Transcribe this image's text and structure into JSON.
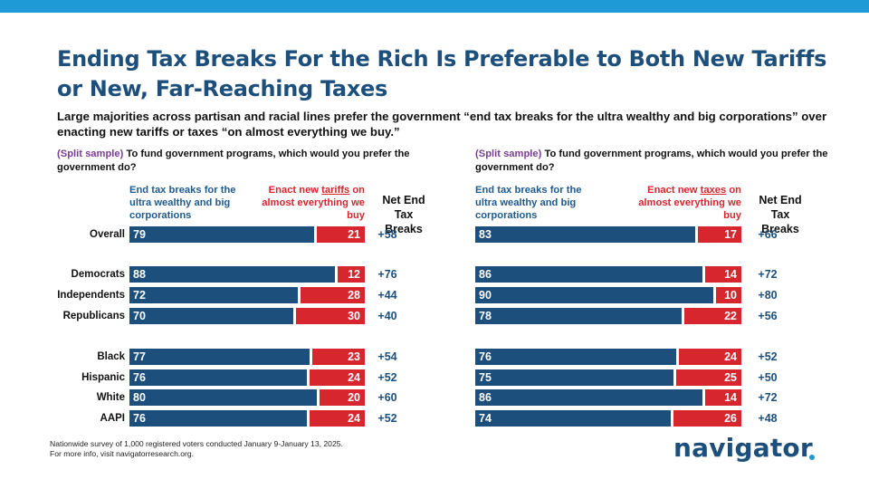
{
  "title": "Ending Tax Breaks For the Rich Is Preferable to Both New Tariffs or New, Far-Reaching Taxes",
  "subtitle": "Large majorities across partisan and racial lines prefer the government “end tax breaks for the ultra wealthy and big corporations” over enacting new tariffs or taxes “on almost everything we buy.”",
  "colors": {
    "blue": "#1d4f7c",
    "red": "#d8262e",
    "accent": "#1e9ad6",
    "split": "#7a3d96"
  },
  "footnote": {
    "line1": "Nationwide survey of 1,000 registered voters conducted January 9-January 13, 2025.",
    "line2": "For more info, visit navigatorresearch.org."
  },
  "logo": "navigator",
  "chart_data": [
    {
      "type": "bar",
      "orientation": "horizontal",
      "stacked": true,
      "question_prefix": "(Split sample)",
      "question": " To fund government programs, which would you prefer the government do?",
      "header_blue": "End tax breaks for the ultra wealthy and big corporations",
      "header_red_pre": "Enact new ",
      "header_red_keyword": "tariffs",
      "header_red_post": " on almost everything we buy",
      "net_header": "Net End Tax Breaks",
      "categories": [
        "Overall",
        "Democrats",
        "Independents",
        "Republicans",
        "Black",
        "Hispanic",
        "White",
        "AAPI"
      ],
      "series": [
        {
          "name": "End tax breaks for the ultra wealthy and big corporations",
          "values": [
            79,
            88,
            72,
            70,
            77,
            76,
            80,
            76
          ]
        },
        {
          "name": "Enact new tariffs on almost everything we buy",
          "values": [
            21,
            12,
            28,
            30,
            23,
            24,
            20,
            24
          ]
        }
      ],
      "net": [
        "+58",
        "+76",
        "+44",
        "+40",
        "+54",
        "+52",
        "+60",
        "+52"
      ],
      "xlim": [
        0,
        100
      ]
    },
    {
      "type": "bar",
      "orientation": "horizontal",
      "stacked": true,
      "question_prefix": "(Split sample)",
      "question": " To fund government programs, which would you prefer the government do?",
      "header_blue": "End tax breaks for the ultra wealthy and big corporations",
      "header_red_pre": "Enact new ",
      "header_red_keyword": "taxes",
      "header_red_post": " on almost everything we buy",
      "net_header": "Net End Tax Breaks",
      "categories": [
        "Overall",
        "Democrats",
        "Independents",
        "Republicans",
        "Black",
        "Hispanic",
        "White",
        "AAPI"
      ],
      "series": [
        {
          "name": "End tax breaks for the ultra wealthy and big corporations",
          "values": [
            83,
            86,
            90,
            78,
            76,
            75,
            86,
            74
          ]
        },
        {
          "name": "Enact new taxes on almost everything we buy",
          "values": [
            17,
            14,
            10,
            22,
            24,
            25,
            14,
            26
          ]
        }
      ],
      "net": [
        "+66",
        "+72",
        "+80",
        "+56",
        "+52",
        "+50",
        "+72",
        "+48"
      ],
      "xlim": [
        0,
        100
      ]
    }
  ]
}
